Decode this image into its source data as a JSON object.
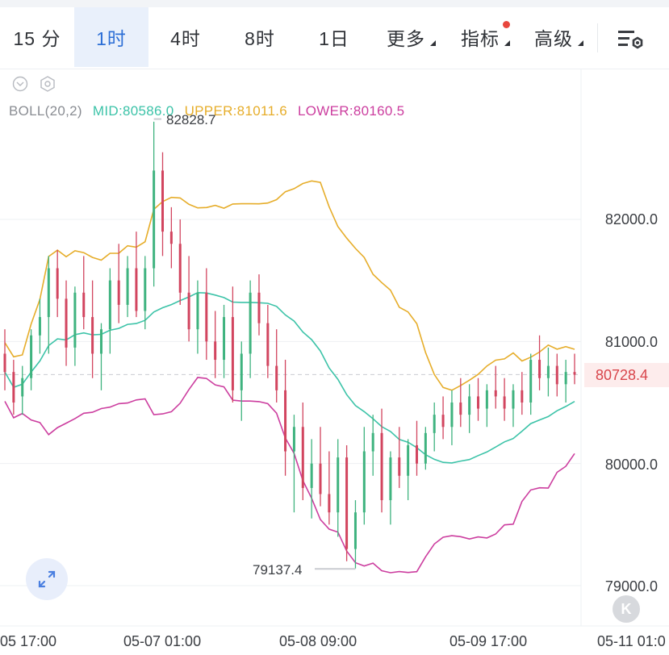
{
  "tabs": [
    {
      "label": "15 分",
      "active": false
    },
    {
      "label": "1时",
      "active": true
    },
    {
      "label": "4时",
      "active": false
    },
    {
      "label": "8时",
      "active": false
    },
    {
      "label": "1日",
      "active": false
    },
    {
      "label": "更多",
      "active": false,
      "dropdown": true
    },
    {
      "label": "指标",
      "active": false,
      "dropdown": true,
      "badge": true
    },
    {
      "label": "高级",
      "active": false,
      "dropdown": true
    }
  ],
  "indicator": {
    "name": "BOLL(20,2)",
    "mid": "MID:80586.0",
    "upper": "UPPER:81011.6",
    "lower": "LOWER:80160.5",
    "colors": {
      "name": "#8a8d93",
      "mid": "#3cc3a8",
      "upper": "#e6ad2a",
      "lower": "#cc3e9f"
    }
  },
  "y_axis": [
    "82000.0",
    "81000.0",
    "80000.0",
    "79000.0"
  ],
  "current_price": "80728.4",
  "x_axis": [
    "05 17:00",
    "05-07 01:00",
    "05-08 09:00",
    "05-09 17:00",
    "05-11 01:0"
  ],
  "high_label": "82828.7",
  "low_label": "79137.4",
  "icons": {
    "settings": "chart-settings-icon",
    "expand": "expand-icon",
    "kline": "k-icon"
  },
  "k_button": "K",
  "chart_data": {
    "type": "candlestick",
    "indicator": "BOLL(20,2)",
    "ylim": [
      78850,
      83000
    ],
    "x_ticks": [
      "05 17:00",
      "05-07 01:00",
      "05-08 09:00",
      "05-09 17:00",
      "05-11 01:0"
    ],
    "current_price": 80728.4,
    "high": 82828.7,
    "low": 79137.4,
    "boll_last": {
      "mid": 80586.0,
      "upper": 81011.6,
      "lower": 80160.5
    },
    "colors": {
      "up": "#3fb37f",
      "down": "#d2455f"
    },
    "candles": [
      [
        80900,
        81100,
        80600,
        80750
      ],
      [
        80750,
        80850,
        80400,
        80500
      ],
      [
        80550,
        80800,
        80400,
        80700
      ],
      [
        80700,
        81100,
        80600,
        81050
      ],
      [
        81050,
        81350,
        80900,
        81200
      ],
      [
        81200,
        81700,
        80900,
        81600
      ],
      [
        81600,
        81750,
        81200,
        81350
      ],
      [
        81350,
        81500,
        80800,
        80950
      ],
      [
        80950,
        81450,
        80800,
        81400
      ],
      [
        81400,
        81700,
        81100,
        81200
      ],
      [
        81200,
        81500,
        80700,
        80900
      ],
      [
        80900,
        81150,
        80600,
        81100
      ],
      [
        81100,
        81600,
        80900,
        81500
      ],
      [
        81500,
        81800,
        81150,
        81300
      ],
      [
        81300,
        81700,
        81200,
        81600
      ],
      [
        81600,
        81900,
        81200,
        81250
      ],
      [
        81250,
        81700,
        81100,
        81600
      ],
      [
        81600,
        82800,
        81450,
        82400
      ],
      [
        82400,
        82550,
        81700,
        81900
      ],
      [
        81900,
        82100,
        81600,
        81800
      ],
      [
        81800,
        82000,
        81300,
        81400
      ],
      [
        81400,
        81700,
        81000,
        81100
      ],
      [
        81100,
        81500,
        80900,
        81400
      ],
      [
        81400,
        81600,
        80850,
        81000
      ],
      [
        81000,
        81250,
        80700,
        80850
      ],
      [
        80850,
        81300,
        80700,
        81200
      ],
      [
        81200,
        81450,
        80500,
        80600
      ],
      [
        80600,
        81000,
        80350,
        80900
      ],
      [
        80900,
        81500,
        80700,
        81400
      ],
      [
        81400,
        81550,
        81050,
        81150
      ],
      [
        81150,
        81300,
        80700,
        80800
      ],
      [
        80800,
        81100,
        80500,
        80600
      ],
      [
        80600,
        80850,
        79900,
        80100
      ],
      [
        80100,
        80400,
        79600,
        80300
      ],
      [
        80300,
        80500,
        79700,
        79800
      ],
      [
        79800,
        80200,
        79550,
        80000
      ],
      [
        80000,
        80300,
        79650,
        79750
      ],
      [
        79750,
        80100,
        79500,
        79600
      ],
      [
        79600,
        80200,
        79400,
        80050
      ],
      [
        80050,
        80150,
        79200,
        79300
      ],
      [
        79300,
        79700,
        79140,
        79600
      ],
      [
        79600,
        80300,
        79500,
        80100
      ],
      [
        80100,
        80400,
        79900,
        80250
      ],
      [
        80250,
        80450,
        79600,
        79700
      ],
      [
        79700,
        80100,
        79500,
        80050
      ],
      [
        80050,
        80300,
        79800,
        79900
      ],
      [
        79900,
        80200,
        79700,
        80150
      ],
      [
        80150,
        80350,
        79900,
        80000
      ],
      [
        80000,
        80300,
        79950,
        80250
      ],
      [
        80250,
        80500,
        80100,
        80400
      ],
      [
        80400,
        80550,
        80200,
        80300
      ],
      [
        80300,
        80600,
        80150,
        80500
      ],
      [
        80500,
        80700,
        80300,
        80400
      ],
      [
        80400,
        80650,
        80250,
        80550
      ],
      [
        80550,
        80700,
        80350,
        80450
      ],
      [
        80450,
        80650,
        80300,
        80600
      ],
      [
        80600,
        80800,
        80450,
        80550
      ],
      [
        80550,
        80700,
        80350,
        80450
      ],
      [
        80450,
        80650,
        80300,
        80600
      ],
      [
        80600,
        80750,
        80400,
        80500
      ],
      [
        80500,
        80900,
        80400,
        80850
      ],
      [
        80850,
        81050,
        80600,
        80700
      ],
      [
        80700,
        80950,
        80550,
        80800
      ],
      [
        80800,
        80900,
        80550,
        80650
      ],
      [
        80650,
        80850,
        80500,
        80750
      ],
      [
        80750,
        80900,
        80650,
        80728.4
      ]
    ]
  }
}
